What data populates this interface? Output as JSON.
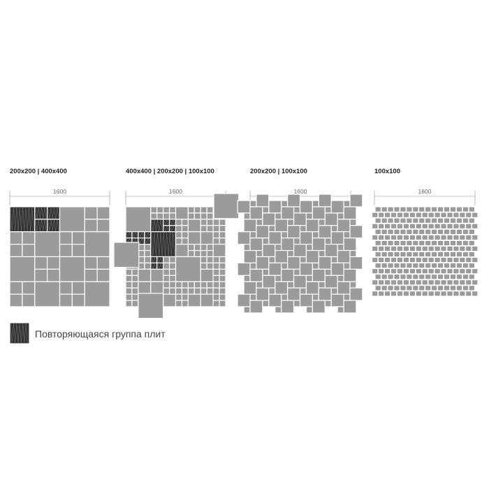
{
  "colors": {
    "tile": "#9b9b9b",
    "repeat_group": "#333333",
    "gap": "#ffffff",
    "dimension_line": "#888888"
  },
  "patterns": [
    {
      "title": "200x200 | 400x400",
      "dimension": "1600"
    },
    {
      "title": "400x400 | 200x200 | 100x100",
      "dimension": "1600"
    },
    {
      "title": "200x200 | 100x100",
      "dimension": "1600"
    },
    {
      "title": "100x100",
      "dimension": "1600"
    }
  ],
  "legend": {
    "label": "Повторяющаяся группа плит",
    "icon": "hatched-dark-swatch"
  }
}
